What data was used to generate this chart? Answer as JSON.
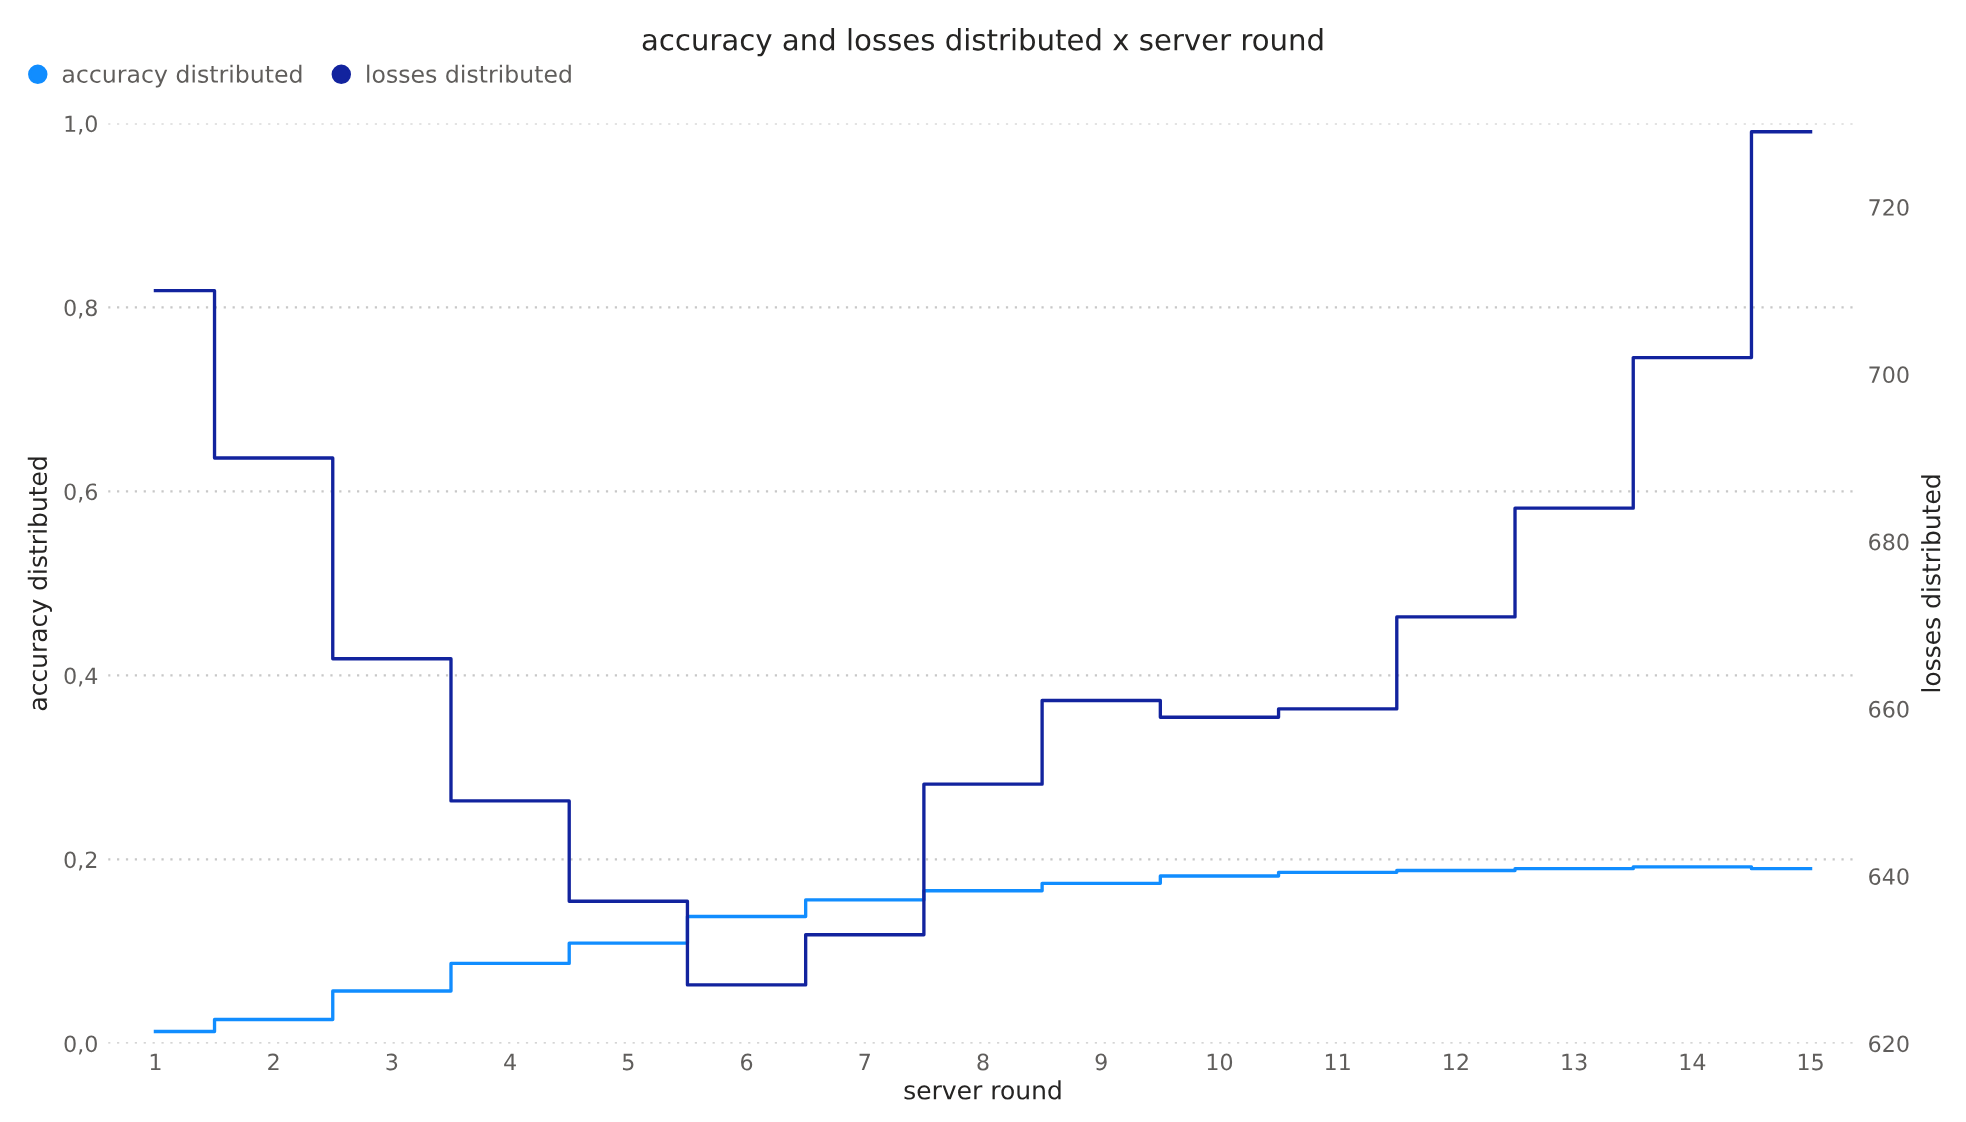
{
  "chart_data": {
    "type": "step",
    "title": "accuracy and losses distributed x server round",
    "xlabel": "server round",
    "ylabel": "accuracy distributed",
    "y2label": "losses distributed",
    "x": [
      1,
      2,
      3,
      4,
      5,
      6,
      7,
      8,
      9,
      10,
      11,
      12,
      13,
      14,
      15
    ],
    "series": [
      {
        "name": "accuracy distributed",
        "color": "#118dff",
        "values": [
          0.013,
          0.026,
          0.057,
          0.087,
          0.109,
          0.138,
          0.156,
          0.166,
          0.174,
          0.182,
          0.186,
          0.188,
          0.19,
          0.192,
          0.19
        ]
      },
      {
        "name": "losses distributed",
        "color": "#12239e",
        "axis": "y2",
        "values": [
          710,
          690,
          666,
          649,
          637,
          627,
          633,
          651,
          661,
          659,
          660,
          671,
          684,
          702,
          729
        ]
      }
    ],
    "xlim": [
      0.6,
      15.4
    ],
    "xticks": [
      1,
      2,
      3,
      4,
      5,
      6,
      7,
      8,
      9,
      10,
      11,
      12,
      13,
      14,
      15
    ],
    "ylim": [
      0,
      1
    ],
    "yticks": [
      {
        "value": 0,
        "label": "0,0"
      },
      {
        "value": 0.2,
        "label": "0,2"
      },
      {
        "value": 0.4,
        "label": "0,4"
      },
      {
        "value": 0.6,
        "label": "0,6"
      },
      {
        "value": 0.8,
        "label": "0,8"
      },
      {
        "value": 1,
        "label": "1,0"
      }
    ],
    "y2lim": [
      620,
      730
    ],
    "y2ticks": [
      620,
      640,
      660,
      680,
      700,
      720
    ],
    "grid": "y",
    "legend": "top left",
    "line_style": "solid",
    "marker": "none"
  }
}
